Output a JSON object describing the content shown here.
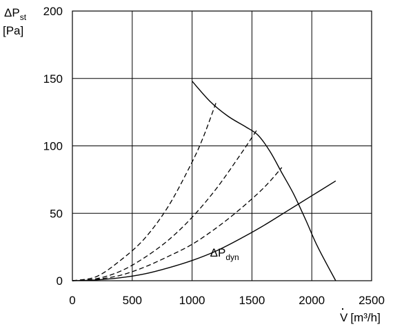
{
  "chart_data": {
    "type": "line",
    "xlabel": {
      "symbol": "V",
      "unit": "[m³/h]"
    },
    "ylabel": {
      "symbol": "ΔP",
      "sub": "st",
      "unit": "[Pa]"
    },
    "xlim": [
      0,
      2500
    ],
    "ylim": [
      0,
      200
    ],
    "xticks": [
      0,
      500,
      1000,
      1500,
      2000,
      2500
    ],
    "yticks": [
      0,
      50,
      100,
      150,
      200
    ],
    "grid": true,
    "series": [
      {
        "style": "solid",
        "x": [
          1000,
          1150,
          1300,
          1450,
          1550,
          1650,
          1750,
          1850,
          1950,
          2050,
          2200
        ],
        "y": [
          148,
          133,
          122,
          114,
          108,
          96,
          80,
          64,
          45,
          25,
          0
        ]
      },
      {
        "name": "ΔPdyn",
        "style": "solid",
        "x": [
          0,
          200,
          400,
          600,
          800,
          1000,
          1200,
          1400,
          1600,
          1800,
          2000,
          2200
        ],
        "y": [
          0,
          0.6,
          2.2,
          5,
          9.5,
          15,
          22,
          31,
          41,
          52,
          63,
          74
        ]
      },
      {
        "style": "dashed",
        "x": [
          0,
          200,
          400,
          600,
          800,
          1000,
          1100,
          1200
        ],
        "y": [
          0,
          3,
          15,
          31,
          55,
          88,
          108,
          132
        ]
      },
      {
        "style": "dashed",
        "x": [
          0,
          200,
          400,
          600,
          800,
          1000,
          1200,
          1400,
          1550
        ],
        "y": [
          0,
          1.5,
          7,
          17,
          30,
          47,
          68,
          93,
          113
        ]
      },
      {
        "style": "dashed",
        "x": [
          0,
          200,
          400,
          600,
          800,
          1000,
          1200,
          1400,
          1600,
          1750
        ],
        "y": [
          0,
          1,
          4,
          10,
          18,
          27,
          39,
          53,
          69,
          84
        ]
      }
    ],
    "annotations": [
      {
        "text": "ΔP",
        "sub": "dyn",
        "x": 1150,
        "y": 18
      }
    ]
  }
}
